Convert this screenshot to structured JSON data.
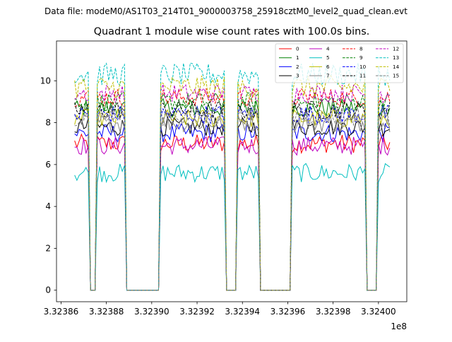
{
  "figure": {
    "suptitle": "Data file: modeM0/AS1T03_214T01_9000003758_25918cztM0_level2_quad_clean.evt"
  },
  "chart_data": {
    "type": "line",
    "title": "Quadrant 1 module wise count rates with 100.0s bins.",
    "xlabel": "",
    "ylabel": "",
    "x_offset_label": "1e8",
    "xlim": [
      332385800,
      332401250
    ],
    "ylim": [
      -0.55,
      11.9
    ],
    "x_ticks": [
      332386000,
      332388000,
      332390000,
      332392000,
      332394000,
      332396000,
      332398000,
      332400000
    ],
    "x_tick_labels": [
      "3.32386",
      "3.32388",
      "3.32390",
      "3.32392",
      "3.32394",
      "3.32396",
      "3.32398",
      "3.32400"
    ],
    "y_ticks": [
      0,
      2,
      4,
      6,
      8,
      10
    ],
    "y_tick_labels": [
      "0",
      "2",
      "4",
      "6",
      "8",
      "10"
    ],
    "grid": false,
    "legend_position": "top-right",
    "bin_seconds": 100,
    "x_start": 332386600,
    "segments": [
      [
        332386600,
        332387250
      ],
      [
        332387550,
        332388850
      ],
      [
        332390350,
        332393250
      ],
      [
        332393750,
        332394750
      ],
      [
        332396150,
        332399450
      ],
      [
        332399950,
        332400550
      ]
    ],
    "series": [
      {
        "name": "0",
        "color": "#ff0000",
        "dash": "solid",
        "level": 7.0
      },
      {
        "name": "1",
        "color": "#008000",
        "dash": "solid",
        "level": 8.7
      },
      {
        "name": "2",
        "color": "#0000ff",
        "dash": "solid",
        "level": 7.5
      },
      {
        "name": "3",
        "color": "#000000",
        "dash": "solid",
        "level": 7.8
      },
      {
        "name": "4",
        "color": "#bf00bf",
        "dash": "solid",
        "level": 6.9
      },
      {
        "name": "5",
        "color": "#00bfbf",
        "dash": "solid",
        "level": 5.6
      },
      {
        "name": "6",
        "color": "#bfbf00",
        "dash": "solid",
        "level": 8.2
      },
      {
        "name": "7",
        "color": "#808080",
        "dash": "solid",
        "level": 8.0
      },
      {
        "name": "8",
        "color": "#ff0000",
        "dash": "dashed",
        "level": 9.2
      },
      {
        "name": "9",
        "color": "#008000",
        "dash": "dashed",
        "level": 9.0
      },
      {
        "name": "10",
        "color": "#0000ff",
        "dash": "dashed",
        "level": 8.4
      },
      {
        "name": "11",
        "color": "#000000",
        "dash": "dashed",
        "level": 8.6
      },
      {
        "name": "12",
        "color": "#bf00bf",
        "dash": "dashed",
        "level": 9.4
      },
      {
        "name": "13",
        "color": "#00bfbf",
        "dash": "dashed",
        "level": 10.3
      },
      {
        "name": "14",
        "color": "#bfbf00",
        "dash": "dashed",
        "level": 9.7
      },
      {
        "name": "15",
        "color": "#808080",
        "dash": "dashed",
        "level": 8.3
      }
    ]
  }
}
